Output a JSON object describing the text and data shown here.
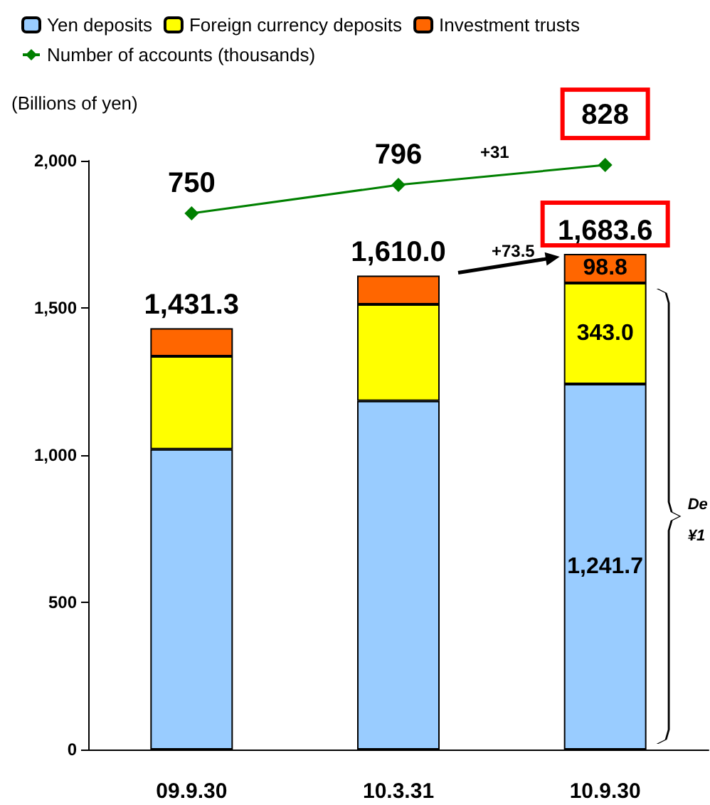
{
  "chart_data": {
    "type": "bar",
    "stacked": true,
    "ylabel": "(Billions of yen)",
    "categories": [
      "09.9.30",
      "10.3.31",
      "10.9.30"
    ],
    "series": [
      {
        "name": "Yen deposits",
        "color": "#99ccff",
        "values": [
          1020,
          1184,
          1241.7
        ],
        "value_labels": [
          null,
          null,
          "1,241.7"
        ]
      },
      {
        "name": "Foreign currency deposits",
        "color": "#ffff00",
        "values": [
          316,
          328,
          343.0
        ],
        "value_labels": [
          null,
          null,
          "343.0"
        ]
      },
      {
        "name": "Investment trusts",
        "color": "#ff6600",
        "values": [
          95.3,
          98,
          98.8
        ],
        "value_labels": [
          null,
          null,
          "98.8"
        ]
      },
      {
        "name": "Number of accounts (thousands)",
        "type": "line",
        "axis": "y2",
        "color": "#008000",
        "values": [
          750,
          796,
          828
        ],
        "value_labels": [
          "750",
          "796",
          "828"
        ]
      }
    ],
    "totals": [
      "1,431.3",
      "1,610.0",
      "1,683.6"
    ],
    "annotations": [
      "+31",
      "+73.5",
      "De",
      "¥1"
    ],
    "ylim": [
      0,
      2000
    ],
    "yticks": [
      0,
      500,
      {
        "value": 1000,
        "label": "1,000"
      },
      {
        "value": 1500,
        "label": "1,500"
      },
      {
        "value": 2000,
        "label": "2,000"
      }
    ],
    "y2lim": [
      -115,
      835
    ],
    "legend": "top left",
    "marker": "diamond",
    "line_style": "solid",
    "grid": false
  }
}
